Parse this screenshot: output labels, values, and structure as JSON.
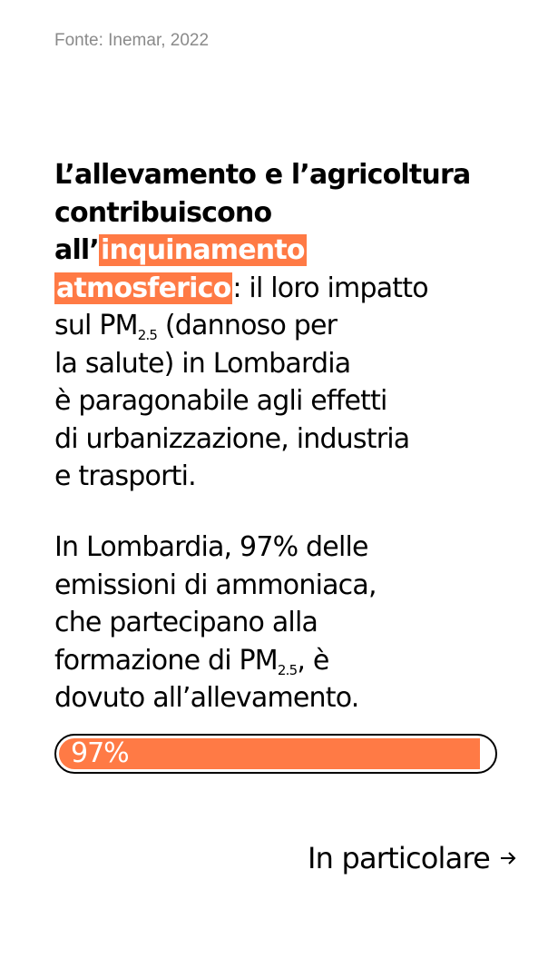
{
  "source": "Fonte: Inemar, 2022",
  "paragraph1": {
    "l1": "L’allevamento e l’agricoltura",
    "l2": "contribuiscono",
    "l3a": "all’",
    "l3b": "inquinamento",
    "l4a": "atmosferico",
    "l4b": ": il loro impatto",
    "l5a": "sul PM",
    "l5sub": "2.5",
    "l5b": " (dannoso per",
    "l6": "la salute) in Lombardia",
    "l7": "è paragonabile agli effetti",
    "l8": "di urbanizzazione, industria",
    "l9": "e trasporti."
  },
  "paragraph2": {
    "l1": "In Lombardia, 97% delle",
    "l2": "emissioni di ammoniaca,",
    "l3": "che partecipano alla",
    "l4a": "formazione di PM",
    "l4sub": "2.5",
    "l4b": ", è",
    "l5": "dovuto all’allevamento."
  },
  "progress": {
    "label": "97%",
    "percent": 97,
    "color": "#ff7a45"
  },
  "more_link": {
    "label": "In particolare",
    "icon": "arrow-right-icon"
  }
}
